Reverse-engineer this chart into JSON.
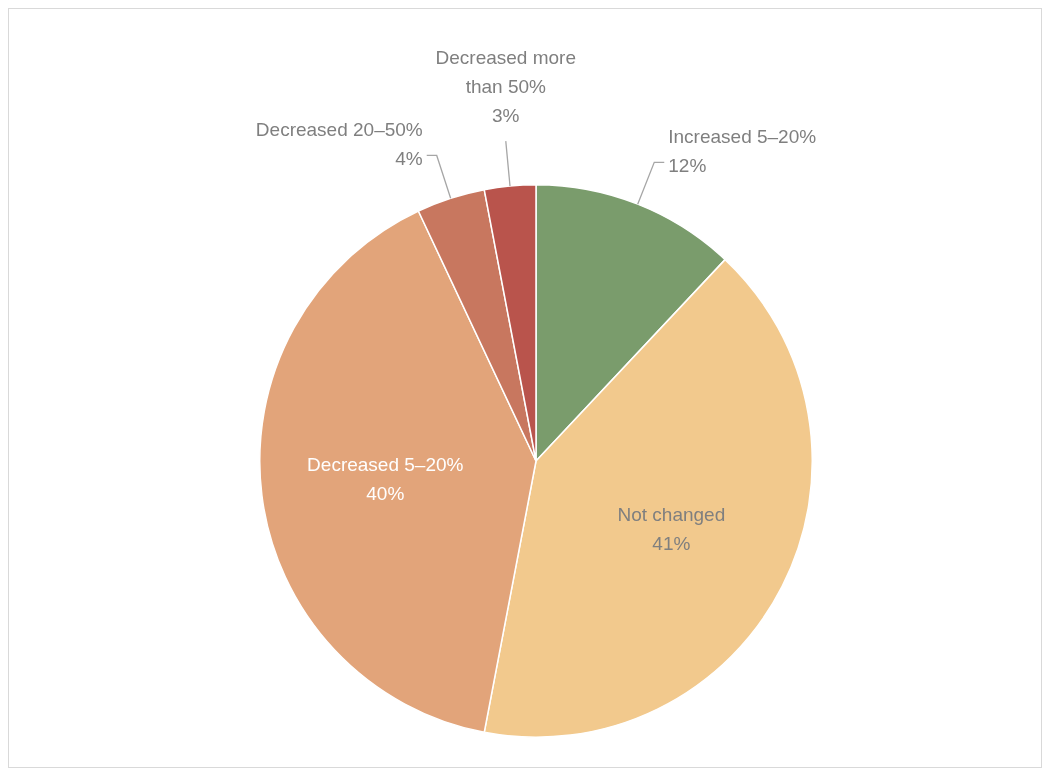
{
  "chart_data": {
    "type": "pie",
    "categories": [
      "Increased 5–20%",
      "Not changed",
      "Decreased 5–20%",
      "Decreased 20–50%",
      "Decreased more than 50%"
    ],
    "values": [
      12,
      41,
      40,
      4,
      3
    ],
    "colors": [
      "#7a9c6c",
      "#f2c98d",
      "#e2a47a",
      "#c8775f",
      "#b9544c"
    ],
    "value_labels": [
      "12%",
      "41%",
      "40%",
      "4%",
      "3%"
    ],
    "legend": false
  }
}
